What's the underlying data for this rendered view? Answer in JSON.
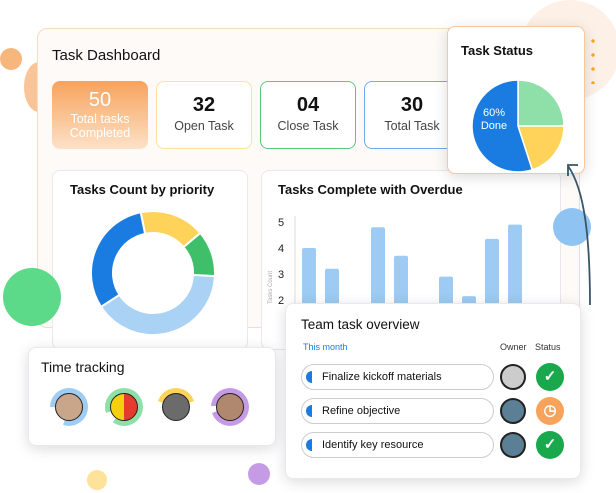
{
  "dashboard": {
    "title": "Task Dashboard"
  },
  "stats": [
    {
      "value": "50",
      "label": "Total tasks Completed"
    },
    {
      "value": "32",
      "label": "Open Task"
    },
    {
      "value": "04",
      "label": "Close Task"
    },
    {
      "value": "30",
      "label": "Total Task"
    }
  ],
  "priority": {
    "title": "Tasks Count by priority"
  },
  "overdue": {
    "title": "Tasks Complete with  Overdue"
  },
  "task_status": {
    "title": "Task Status",
    "center_pct": "60%",
    "center_label": "Done"
  },
  "time_tracking": {
    "title": "Time tracking"
  },
  "team": {
    "title": "Team task overview",
    "period": "This month",
    "owner_header": "Owner",
    "status_header": "Status",
    "tasks": [
      {
        "name": "Finalize kickoff materials",
        "status": "done"
      },
      {
        "name": "Refine objective",
        "status": "pending"
      },
      {
        "name": "Identify key resource",
        "status": "done"
      }
    ]
  },
  "colors": {
    "accent": "#f7a35c",
    "blue": "#1a7be0",
    "green": "#1aa84d",
    "yellow": "#ffd35a"
  },
  "chart_data": [
    {
      "type": "bar",
      "title": "Tasks Complete with  Overdue",
      "ylabel": "Tasks Count",
      "yticks": [
        "5",
        "4",
        "3",
        "2"
      ],
      "ylim": [
        0,
        5
      ],
      "values": [
        4.0,
        3.2,
        4.8,
        3.7,
        2.9,
        2.15,
        4.35,
        4.9
      ]
    },
    {
      "type": "pie",
      "title": "Tasks Count by priority",
      "donut": true,
      "values": [
        17,
        12,
        40,
        31
      ],
      "colors": [
        "#ffd35a",
        "#3fbf6a",
        "#a9d2f5",
        "#1a7be0"
      ]
    },
    {
      "type": "pie",
      "title": "Task Status",
      "values": [
        25,
        20,
        55
      ],
      "colors": [
        "#8fe0a8",
        "#ffd35a",
        "#1a7be0"
      ]
    }
  ]
}
